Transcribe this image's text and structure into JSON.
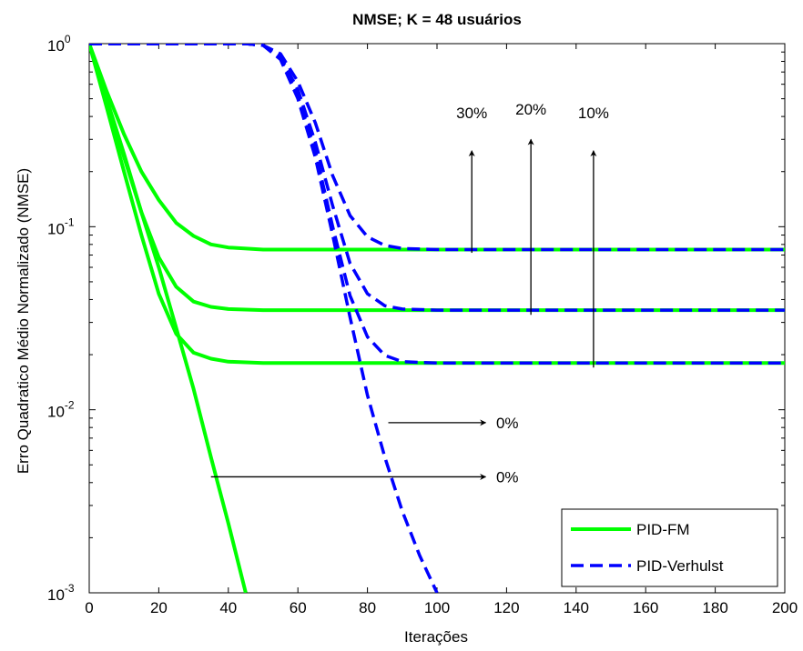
{
  "chart_data": {
    "type": "line",
    "title": "NMSE; K = 48 usuários",
    "xlabel": "Iterações",
    "ylabel": "Erro Quadratico Médio Normalizado (NMSE)",
    "xlim": [
      0,
      200
    ],
    "ylim": [
      0.001,
      1
    ],
    "yscale": "log",
    "grid": false,
    "xticks": [
      0,
      20,
      40,
      60,
      80,
      100,
      120,
      140,
      160,
      180,
      200
    ],
    "yticks": [
      {
        "value": 1,
        "base": "10",
        "exp": "0"
      },
      {
        "value": 0.1,
        "base": "10",
        "exp": "-1"
      },
      {
        "value": 0.01,
        "base": "10",
        "exp": "-2"
      },
      {
        "value": 0.001,
        "base": "10",
        "exp": "-3"
      }
    ],
    "legend": {
      "placement": "bottom-right",
      "entries": [
        {
          "label": "PID-FM",
          "color": "#00ff00",
          "style": "solid"
        },
        {
          "label": "PID-Verhulst",
          "color": "#0000ff",
          "style": "dashed"
        }
      ]
    },
    "series": [
      {
        "legend": "PID-FM",
        "color": "#00ff00",
        "style": "solid",
        "x": [
          0,
          5,
          10,
          15,
          20,
          25,
          30,
          35,
          40,
          50,
          60,
          80,
          100,
          150,
          200
        ],
        "y": [
          1,
          0.55,
          0.32,
          0.2,
          0.14,
          0.105,
          0.089,
          0.08,
          0.077,
          0.075,
          0.075,
          0.075,
          0.075,
          0.075,
          0.075
        ]
      },
      {
        "legend": "PID-FM",
        "color": "#00ff00",
        "style": "solid",
        "x": [
          0,
          5,
          10,
          15,
          20,
          25,
          30,
          35,
          40,
          50,
          60,
          80,
          100,
          150,
          200
        ],
        "y": [
          1,
          0.48,
          0.24,
          0.12,
          0.068,
          0.047,
          0.039,
          0.0365,
          0.0355,
          0.035,
          0.035,
          0.035,
          0.035,
          0.035,
          0.035
        ]
      },
      {
        "legend": "PID-FM",
        "color": "#00ff00",
        "style": "solid",
        "x": [
          0,
          5,
          10,
          15,
          20,
          25,
          30,
          35,
          40,
          50,
          60,
          80,
          100,
          150,
          200
        ],
        "y": [
          1,
          0.45,
          0.2,
          0.09,
          0.043,
          0.026,
          0.0205,
          0.019,
          0.0183,
          0.018,
          0.018,
          0.018,
          0.018,
          0.018,
          0.018
        ]
      },
      {
        "legend": "PID-FM",
        "color": "#00ff00",
        "style": "solid",
        "x": [
          0,
          5,
          10,
          15,
          20,
          25,
          30,
          35,
          40,
          45
        ],
        "y": [
          1,
          0.5,
          0.25,
          0.12,
          0.06,
          0.028,
          0.013,
          0.0055,
          0.0024,
          0.001
        ]
      },
      {
        "legend": "PID-Verhulst",
        "color": "#0000ff",
        "style": "dashed",
        "x": [
          0,
          40,
          45,
          50,
          55,
          60,
          65,
          70,
          75,
          80,
          85,
          90,
          100,
          120,
          200
        ],
        "y": [
          1,
          1,
          1,
          0.98,
          0.88,
          0.62,
          0.37,
          0.19,
          0.115,
          0.088,
          0.079,
          0.076,
          0.075,
          0.075,
          0.075
        ]
      },
      {
        "legend": "PID-Verhulst",
        "color": "#0000ff",
        "style": "dashed",
        "x": [
          0,
          40,
          45,
          50,
          55,
          60,
          65,
          70,
          75,
          80,
          85,
          90,
          100,
          120,
          200
        ],
        "y": [
          1,
          1,
          1,
          0.98,
          0.85,
          0.56,
          0.29,
          0.13,
          0.063,
          0.043,
          0.037,
          0.0355,
          0.035,
          0.035,
          0.035
        ]
      },
      {
        "legend": "PID-Verhulst",
        "color": "#0000ff",
        "style": "dashed",
        "x": [
          0,
          40,
          45,
          50,
          55,
          60,
          65,
          70,
          75,
          80,
          85,
          90,
          100,
          120,
          200
        ],
        "y": [
          1,
          1,
          1,
          0.98,
          0.83,
          0.52,
          0.26,
          0.1,
          0.042,
          0.025,
          0.0198,
          0.0183,
          0.018,
          0.018,
          0.018
        ]
      },
      {
        "legend": "PID-Verhulst",
        "color": "#0000ff",
        "style": "dashed",
        "x": [
          0,
          40,
          45,
          50,
          55,
          60,
          65,
          70,
          75,
          80,
          85,
          90,
          95,
          100
        ],
        "y": [
          1,
          1,
          1,
          0.98,
          0.82,
          0.5,
          0.24,
          0.09,
          0.032,
          0.012,
          0.0055,
          0.0028,
          0.0016,
          0.001
        ]
      }
    ],
    "annotations": [
      {
        "text": "30%",
        "kind": "arrow-up",
        "x": 110,
        "y_from": 0.072,
        "y_to": 0.26,
        "text_x": 110,
        "text_y": 0.42
      },
      {
        "text": "20%",
        "kind": "arrow-up",
        "x": 127,
        "y_from": 0.033,
        "y_to": 0.3,
        "text_x": 127,
        "text_y": 0.44
      },
      {
        "text": "10%",
        "kind": "arrow-up",
        "x": 145,
        "y_from": 0.017,
        "y_to": 0.26,
        "text_x": 145,
        "text_y": 0.42
      },
      {
        "text": "0%",
        "kind": "arrow-right",
        "y": 0.0085,
        "x_from": 86,
        "x_to": 114,
        "text_x": 117,
        "text_y": 0.0085
      },
      {
        "text": "0%",
        "kind": "arrow-right",
        "y": 0.0043,
        "x_from": 35,
        "x_to": 114,
        "text_x": 117,
        "text_y": 0.0043
      }
    ]
  }
}
